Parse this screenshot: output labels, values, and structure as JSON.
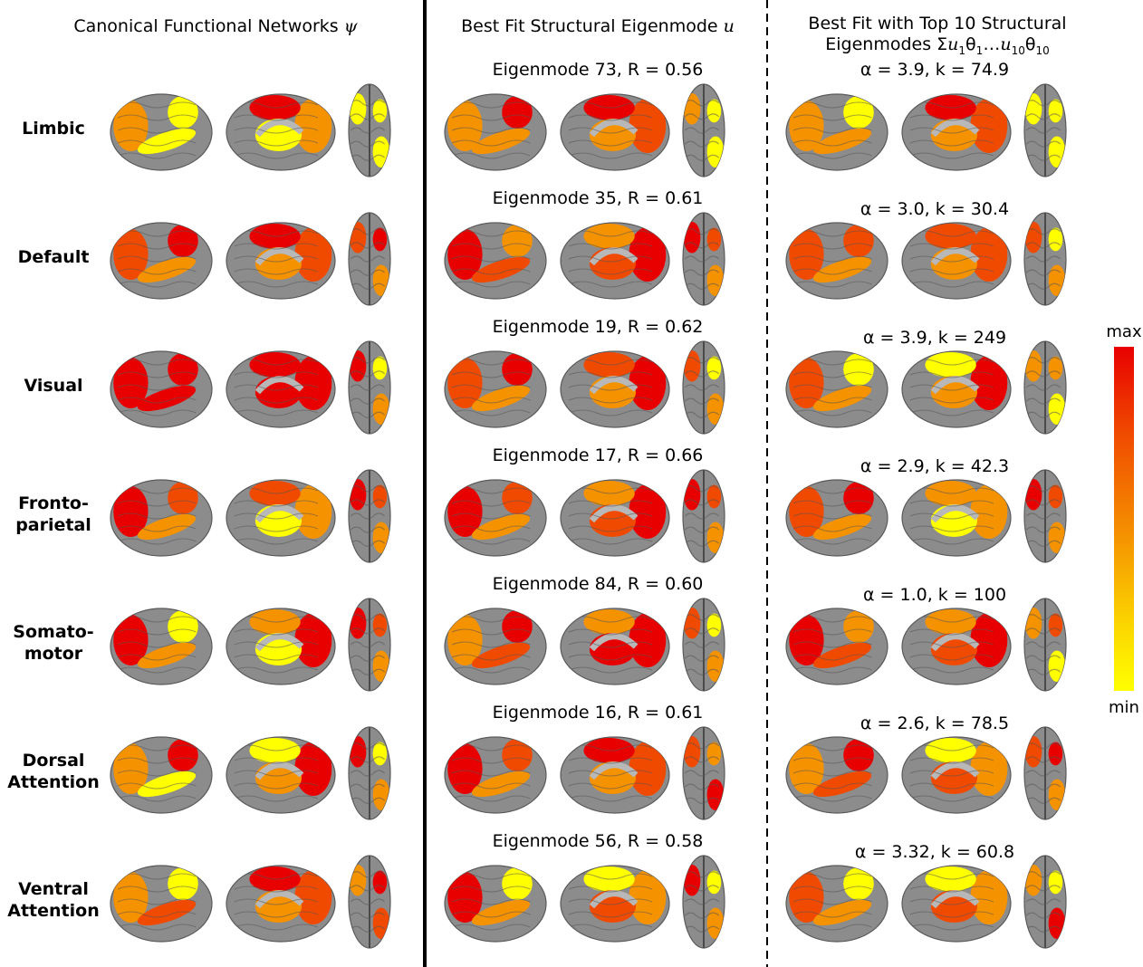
{
  "headers": {
    "col1_text": "Canonical Functional Networks ",
    "col1_symbol": "ψ",
    "col2_text": "Best Fit Structural Eigenmode ",
    "col2_symbol": "u",
    "col3_line1": "Best Fit with Top 10 Structural",
    "col3_line2_prefix": "Eigenmodes Σ",
    "col3_sym_u": "u",
    "col3_sub_1": "1",
    "col3_theta": "θ",
    "col3_ellipsis": "…",
    "col3_sub_10": "10"
  },
  "colorbar": {
    "max_label": "max",
    "min_label": "min",
    "colors": [
      "#ffff00",
      "#f59200",
      "#f04a00",
      "#e80000"
    ]
  },
  "rows": [
    {
      "label": [
        "Limbic"
      ],
      "eigenmode": "Eigenmode 73, R = 0.56",
      "fit": "α = 3.9, k =  74.9"
    },
    {
      "label": [
        "Default"
      ],
      "eigenmode": "Eigenmode 35, R = 0.61",
      "fit": "α = 3.0, k = 30.4"
    },
    {
      "label": [
        "Visual"
      ],
      "eigenmode": "Eigenmode 19, R = 0.62",
      "fit": "α = 3.9, k = 249"
    },
    {
      "label": [
        "Fronto-",
        "parietal"
      ],
      "eigenmode": "Eigenmode 17, R = 0.66",
      "fit": "α = 2.9, k = 42.3"
    },
    {
      "label": [
        "Somato-",
        "motor"
      ],
      "eigenmode": "Eigenmode 84, R = 0.60",
      "fit": "α = 1.0, k = 100"
    },
    {
      "label": [
        "Dorsal",
        "Attention"
      ],
      "eigenmode": "Eigenmode 16, R = 0.61",
      "fit": "α = 2.6, k =  78.5"
    },
    {
      "label": [
        "Ventral",
        "Attention"
      ],
      "eigenmode": "Eigenmode 56, R = 0.58",
      "fit": "α = 3.32, k = 60.8"
    }
  ]
}
